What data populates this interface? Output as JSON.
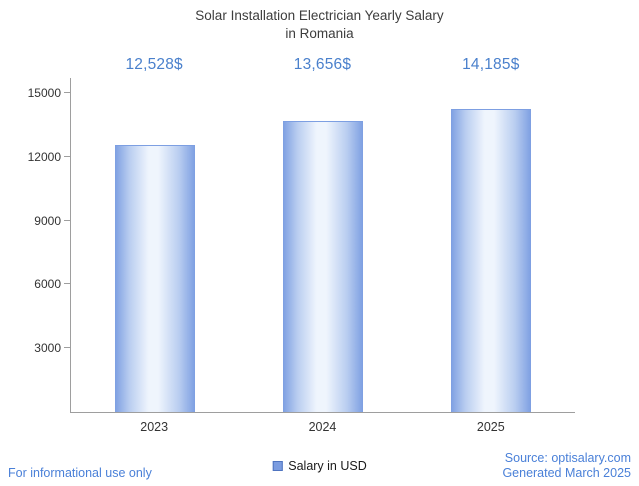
{
  "chart_data": {
    "type": "bar",
    "title_lines": [
      "Solar Installation Electrician Yearly Salary",
      "in Romania"
    ],
    "categories": [
      "2023",
      "2024",
      "2025"
    ],
    "values": [
      12528,
      13656,
      14185
    ],
    "value_labels": [
      "12,528$",
      "13,656$",
      "14,185$"
    ],
    "series_name": "Salary in USD",
    "xlabel": "",
    "ylabel": "",
    "ylim": [
      0,
      15708
    ],
    "yticks": [
      3000,
      6000,
      9000,
      12000,
      15000
    ],
    "grid": false,
    "legend_position": "bottom"
  },
  "footer": {
    "disclaimer": "For informational use only",
    "source": "Source: optisalary.com",
    "generated": "Generated March 2025"
  },
  "colors": {
    "accent_blue": "#4a80cc",
    "footer_blue": "#4a80d8",
    "bar_edge": "#7d9fe2",
    "bar_center": "#eff5fd",
    "axis_gray": "#9e9e9e",
    "title_gray": "#3d3d3d"
  }
}
